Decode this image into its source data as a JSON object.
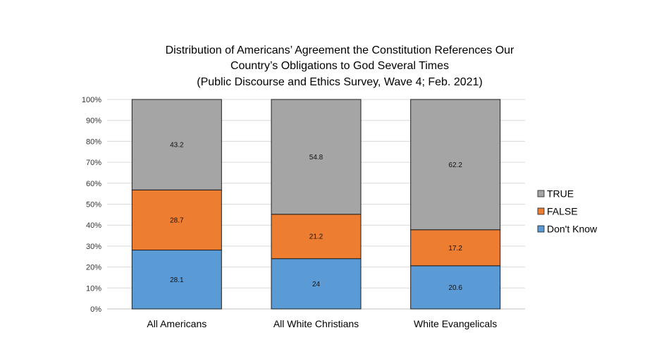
{
  "chart_data": {
    "type": "bar",
    "stacked": true,
    "title": [
      "Distribution of Americans’ Agreement the Constitution References Our",
      "Country’s Obligations to God Several Times",
      "(Public Discourse and Ethics Survey, Wave 4; Feb. 2021)"
    ],
    "categories": [
      "All Americans",
      "All White Christians",
      "White Evangelicals"
    ],
    "series": [
      {
        "name": "Don't Know",
        "values": [
          28.1,
          24,
          20.6
        ],
        "labels": [
          "28.1",
          "24",
          "20.6"
        ],
        "color": "#5b9bd5"
      },
      {
        "name": "FALSE",
        "values": [
          28.7,
          21.2,
          17.2
        ],
        "labels": [
          "28.7",
          "21.2",
          "17.2"
        ],
        "color": "#ed7d31"
      },
      {
        "name": "TRUE",
        "values": [
          43.2,
          54.8,
          62.2
        ],
        "labels": [
          "43.2",
          "54.8",
          "62.2"
        ],
        "color": "#a5a5a5"
      }
    ],
    "ylim": [
      0,
      100
    ],
    "yticks": [
      "0%",
      "10%",
      "20%",
      "30%",
      "40%",
      "50%",
      "60%",
      "70%",
      "80%",
      "90%",
      "100%"
    ],
    "legend": {
      "position": "right",
      "order": [
        "TRUE",
        "FALSE",
        "Don't Know"
      ]
    },
    "grid": true,
    "gridColor": "#d9d9d9"
  }
}
